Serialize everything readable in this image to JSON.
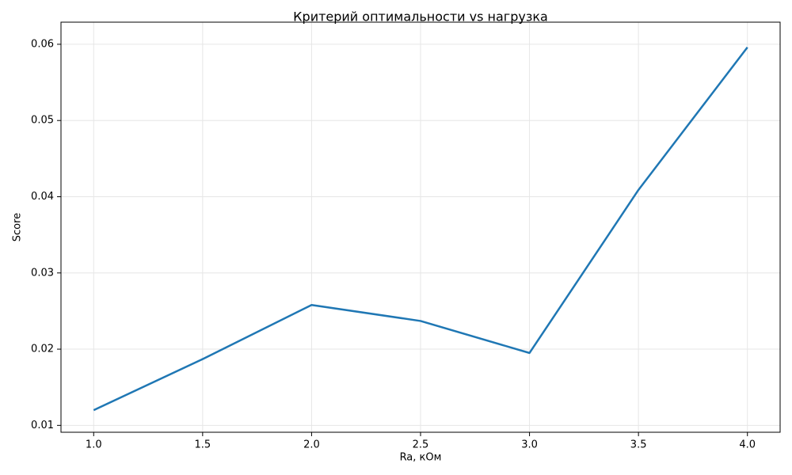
{
  "chart_data": {
    "type": "line",
    "title": "Критерий оптимальности vs нагрузка",
    "x_label": "Ra, кОм",
    "y_label": "Score",
    "x": [
      1.0,
      1.5,
      2.0,
      2.5,
      3.0,
      3.5,
      4.0
    ],
    "series": [
      {
        "name": "Score",
        "color": "#1f77b4",
        "values": [
          0.012,
          0.0187,
          0.0258,
          0.0237,
          0.0195,
          0.0409,
          0.0596
        ]
      }
    ],
    "xlim": [
      0.85,
      4.15
    ],
    "ylim": [
      0.0091,
      0.0629
    ],
    "xticks": [
      {
        "value": 1.0,
        "label": "1.0"
      },
      {
        "value": 1.5,
        "label": "1.5"
      },
      {
        "value": 2.0,
        "label": "2.0"
      },
      {
        "value": 2.5,
        "label": "2.5"
      },
      {
        "value": 3.0,
        "label": "3.0"
      },
      {
        "value": 3.5,
        "label": "3.5"
      },
      {
        "value": 4.0,
        "label": "4.0"
      }
    ],
    "yticks": [
      0.01,
      0.02,
      0.03,
      0.04,
      0.05,
      0.06
    ],
    "grid": true
  }
}
